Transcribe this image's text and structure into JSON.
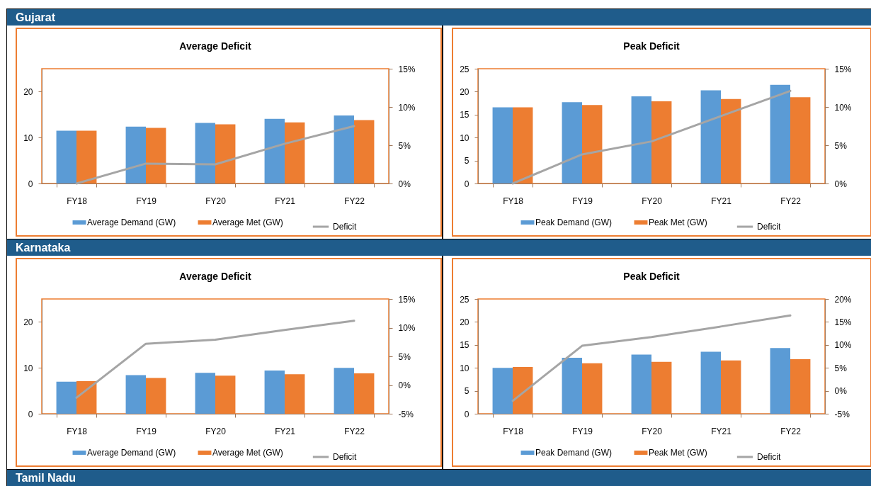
{
  "chart_data": [
    {
      "type": "other",
      "title": "Gujarat"
    },
    {
      "type": "bar",
      "title": "Average Deficit",
      "categories": [
        "FY18",
        "FY19",
        "FY20",
        "FY21",
        "FY22"
      ],
      "series": [
        {
          "name": "Average Demand (GW)",
          "color": "#5b9bd5",
          "values": [
            11.5,
            12.4,
            13.2,
            14.1,
            14.8
          ]
        },
        {
          "name": "Average Met (GW)",
          "color": "#ed7d31",
          "values": [
            11.5,
            12.1,
            12.9,
            13.3,
            13.8
          ]
        },
        {
          "name": "Deficit",
          "type": "line",
          "axis": "y2",
          "color": "#a5a5a5",
          "values": [
            0,
            2.6,
            2.5,
            5.2,
            7.5
          ]
        }
      ],
      "ylim": [
        0,
        25
      ],
      "yticks": [
        0,
        10,
        20
      ],
      "y2lim": [
        0,
        15
      ],
      "y2ticks": [
        {
          "value": 0,
          "label": "0%"
        },
        {
          "value": 5,
          "label": "5%"
        },
        {
          "value": 10,
          "label": "10%"
        },
        {
          "value": 15,
          "label": "15%"
        }
      ],
      "legend": "bottom"
    },
    {
      "type": "bar",
      "title": "Peak Deficit",
      "categories": [
        "FY18",
        "FY19",
        "FY20",
        "FY21",
        "FY22"
      ],
      "series": [
        {
          "name": "Peak Demand (GW)",
          "color": "#5b9bd5",
          "values": [
            16.6,
            17.7,
            19.0,
            20.3,
            21.5
          ]
        },
        {
          "name": "Peak Met (GW)",
          "color": "#ed7d31",
          "values": [
            16.6,
            17.1,
            17.9,
            18.4,
            18.8
          ]
        },
        {
          "name": "Deficit",
          "type": "line",
          "axis": "y2",
          "color": "#a5a5a5",
          "values": [
            0,
            3.8,
            5.5,
            8.8,
            12.1
          ]
        }
      ],
      "ylim": [
        0,
        25
      ],
      "yticks": [
        0,
        5,
        10,
        15,
        20,
        25
      ],
      "y2lim": [
        0,
        15
      ],
      "y2ticks": [
        {
          "value": 0,
          "label": "0%"
        },
        {
          "value": 5,
          "label": "5%"
        },
        {
          "value": 10,
          "label": "10%"
        },
        {
          "value": 15,
          "label": "15%"
        }
      ],
      "legend": "bottom"
    },
    {
      "type": "other",
      "title": "Karnataka"
    },
    {
      "type": "bar",
      "title": "Average Deficit",
      "categories": [
        "FY18",
        "FY19",
        "FY20",
        "FY21",
        "FY22"
      ],
      "series": [
        {
          "name": "Average Demand (GW)",
          "color": "#5b9bd5",
          "values": [
            7.0,
            8.4,
            8.9,
            9.4,
            10.0
          ]
        },
        {
          "name": "Average Met (GW)",
          "color": "#ed7d31",
          "values": [
            7.1,
            7.8,
            8.3,
            8.6,
            8.8
          ]
        },
        {
          "name": "Deficit",
          "type": "line",
          "axis": "y2",
          "color": "#a5a5a5",
          "values": [
            -2.2,
            7.2,
            7.9,
            9.6,
            11.2
          ]
        }
      ],
      "ylim": [
        0,
        25
      ],
      "yticks": [
        0,
        10,
        20
      ],
      "y2lim": [
        -5,
        15
      ],
      "y2ticks": [
        {
          "value": -5,
          "label": "-5%"
        },
        {
          "value": 0,
          "label": "0%"
        },
        {
          "value": 5,
          "label": "5%"
        },
        {
          "value": 10,
          "label": "10%"
        },
        {
          "value": 15,
          "label": "15%"
        }
      ],
      "legend": "bottom"
    },
    {
      "type": "bar",
      "title": "Peak Deficit",
      "categories": [
        "FY18",
        "FY19",
        "FY20",
        "FY21",
        "FY22"
      ],
      "series": [
        {
          "name": "Peak Demand (GW)",
          "color": "#5b9bd5",
          "values": [
            10.0,
            12.2,
            12.9,
            13.5,
            14.3
          ]
        },
        {
          "name": "Peak Met (GW)",
          "color": "#ed7d31",
          "values": [
            10.2,
            11.0,
            11.3,
            11.6,
            11.9
          ]
        },
        {
          "name": "Deficit",
          "type": "line",
          "axis": "y2",
          "color": "#a5a5a5",
          "values": [
            -2.2,
            9.8,
            11.7,
            14.0,
            16.4
          ]
        }
      ],
      "ylim": [
        0,
        25
      ],
      "yticks": [
        0,
        5,
        10,
        15,
        20,
        25
      ],
      "y2lim": [
        -5,
        20
      ],
      "y2ticks": [
        {
          "value": -5,
          "label": "-5%"
        },
        {
          "value": 0,
          "label": "0%"
        },
        {
          "value": 5,
          "label": "5%"
        },
        {
          "value": 10,
          "label": "10%"
        },
        {
          "value": 15,
          "label": "15%"
        },
        {
          "value": 20,
          "label": "20%"
        }
      ],
      "legend": "bottom"
    },
    {
      "type": "other",
      "title": "Tamil Nadu"
    }
  ]
}
